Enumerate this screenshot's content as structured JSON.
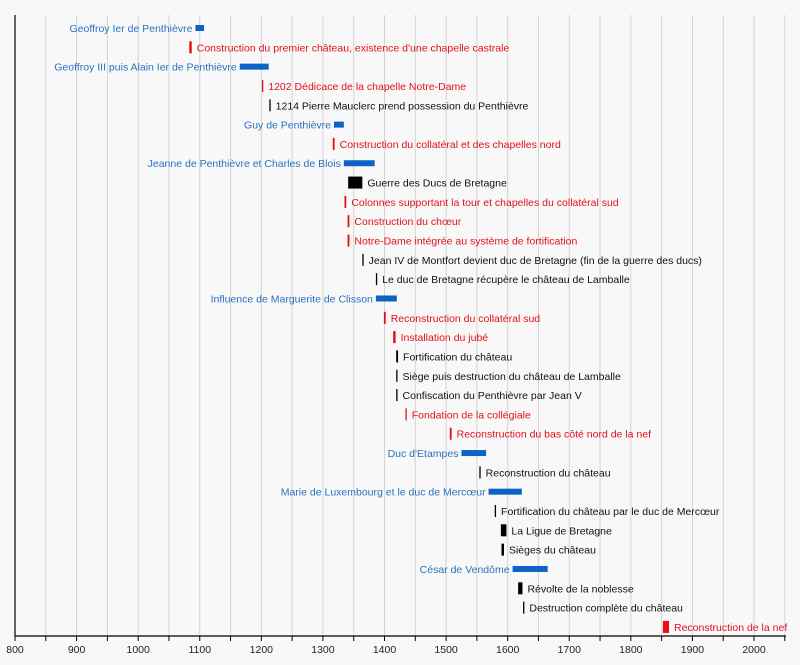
{
  "chart_data": {
    "type": "timeline",
    "title": "",
    "xlabel": "",
    "ylabel": "",
    "xlim": [
      800,
      2050
    ],
    "x_ticks": [
      800,
      900,
      1000,
      1100,
      1200,
      1300,
      1400,
      1500,
      1600,
      1700,
      1800,
      1900,
      2000
    ],
    "minor_tick_step": 50,
    "grid": true,
    "colors": {
      "lord": "#0b63c5",
      "church": "#e3101a",
      "castle": "#000000",
      "lord_text": "#2a72c0",
      "church_text": "#e3101a",
      "castle_text": "#111111"
    },
    "legend": "none",
    "events": [
      {
        "label": "Geoffroy Ier de Penthièvre",
        "start": 1093,
        "end": 1107,
        "category": "lord",
        "label_side": "left"
      },
      {
        "label": "Construction du premier château, existence d'une chapelle castrale",
        "start": 1083,
        "end": 1087,
        "category": "church",
        "label_side": "right"
      },
      {
        "label": "Geoffroy III puis Alain Ier de Penthièvre",
        "start": 1165,
        "end": 1212,
        "category": "lord",
        "label_side": "left"
      },
      {
        "label": "1202 Dédicace de la chapelle Notre-Dame",
        "start": 1202,
        "end": 1202,
        "category": "church",
        "label_side": "right"
      },
      {
        "label": "1214 Pierre Mauclerc prend possession du Penthièvre",
        "start": 1214,
        "end": 1214,
        "category": "castle",
        "label_side": "right"
      },
      {
        "label": "Guy de Penthièvre",
        "start": 1318,
        "end": 1334,
        "category": "lord",
        "label_side": "left"
      },
      {
        "label": "Construction du collatéral et des chapelles nord",
        "start": 1316,
        "end": 1319,
        "category": "church",
        "label_side": "right"
      },
      {
        "label": "Jeanne de Penthièvre et Charles de Blois",
        "start": 1334,
        "end": 1384,
        "category": "lord",
        "label_side": "left"
      },
      {
        "label": "Guerre des Ducs de Bretagne",
        "start": 1341,
        "end": 1364,
        "category": "castle",
        "label_side": "right"
      },
      {
        "label": "Colonnes supportant la tour et chapelles du collatéral sud",
        "start": 1335,
        "end": 1338,
        "category": "church",
        "label_side": "right"
      },
      {
        "label": "Construction du chœur",
        "start": 1340,
        "end": 1343,
        "category": "church",
        "label_side": "right"
      },
      {
        "label": "Notre-Dame intégrée au système de fortification",
        "start": 1340,
        "end": 1343,
        "category": "church",
        "label_side": "right"
      },
      {
        "label": "Jean IV de Montfort devient duc de Bretagne (fin de la guerre des ducs)",
        "start": 1365,
        "end": 1365,
        "category": "castle",
        "label_side": "right"
      },
      {
        "label": "Le duc de Bretagne récupère le château de Lamballe",
        "start": 1387,
        "end": 1387,
        "category": "castle",
        "label_side": "right"
      },
      {
        "label": "Influence de Marguerite de Clisson",
        "start": 1386,
        "end": 1420,
        "category": "lord",
        "label_side": "left"
      },
      {
        "label": "Reconstruction du collatéral sud",
        "start": 1399,
        "end": 1402,
        "category": "church",
        "label_side": "right"
      },
      {
        "label": "Installation du jubé",
        "start": 1414,
        "end": 1418,
        "category": "church",
        "label_side": "right"
      },
      {
        "label": "Fortification du château",
        "start": 1419,
        "end": 1422,
        "category": "castle",
        "label_side": "right"
      },
      {
        "label": "Siège puis destruction du château de Lamballe",
        "start": 1420,
        "end": 1420,
        "category": "castle",
        "label_side": "right"
      },
      {
        "label": "Confiscation du Penthièvre par Jean V",
        "start": 1420,
        "end": 1420,
        "category": "castle",
        "label_side": "right"
      },
      {
        "label": "Fondation de la collégiale",
        "start": 1435,
        "end": 1435,
        "category": "church",
        "label_side": "right"
      },
      {
        "label": "Reconstruction du bas côté nord de la nef",
        "start": 1506,
        "end": 1509,
        "category": "church",
        "label_side": "right"
      },
      {
        "label": "Duc d'Etampes",
        "start": 1525,
        "end": 1565,
        "category": "lord",
        "label_side": "left"
      },
      {
        "label": "Reconstruction du château",
        "start": 1555,
        "end": 1555,
        "category": "castle",
        "label_side": "right"
      },
      {
        "label": "Marie de Luxembourg et le duc de Mercœur",
        "start": 1569,
        "end": 1623,
        "category": "lord",
        "label_side": "left"
      },
      {
        "label": "Fortification du château par le duc de Mercœur",
        "start": 1580,
        "end": 1580,
        "category": "castle",
        "label_side": "right"
      },
      {
        "label": "La Ligue de Bretagne",
        "start": 1589,
        "end": 1598,
        "category": "castle",
        "label_side": "right"
      },
      {
        "label": "Sièges du château",
        "start": 1590,
        "end": 1594,
        "category": "castle",
        "label_side": "right"
      },
      {
        "label": "César de Vendôme",
        "start": 1608,
        "end": 1665,
        "category": "lord",
        "label_side": "left"
      },
      {
        "label": "Révolte de la noblesse",
        "start": 1617,
        "end": 1624,
        "category": "castle",
        "label_side": "right"
      },
      {
        "label": "Destruction complète du château",
        "start": 1626,
        "end": 1626,
        "category": "castle",
        "label_side": "right"
      },
      {
        "label": "Reconstruction de la nef",
        "start": 1852,
        "end": 1862,
        "category": "church",
        "label_side": "right"
      }
    ]
  }
}
